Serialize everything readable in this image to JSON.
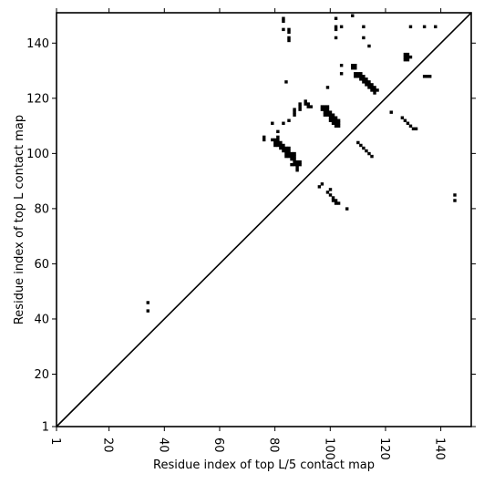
{
  "chart_data": {
    "type": "heatmap",
    "xlabel": "Residue index of top L/5 contact map",
    "ylabel": "Residue index of top L contact map",
    "xlim": [
      1,
      151
    ],
    "ylim": [
      1,
      151
    ],
    "x_ticks": [
      "1",
      "20",
      "40",
      "60",
      "80",
      "100",
      "120",
      "140"
    ],
    "x_tick_values": [
      1,
      20,
      40,
      60,
      80,
      100,
      120,
      140
    ],
    "y_ticks": [
      "1",
      "20",
      "40",
      "60",
      "80",
      "100",
      "120",
      "140"
    ],
    "y_tick_values": [
      1,
      20,
      40,
      60,
      80,
      100,
      120,
      140
    ],
    "diagonal": true,
    "cell_color": "#000000",
    "lower_triangle_contacts": [
      [
        34,
        43
      ],
      [
        34,
        46
      ]
    ],
    "upper_triangle_contacts": [
      [
        76,
        105
      ],
      [
        76,
        106
      ],
      [
        79,
        105
      ],
      [
        79,
        111
      ],
      [
        80,
        103
      ],
      [
        80,
        104
      ],
      [
        80,
        105
      ],
      [
        81,
        103
      ],
      [
        81,
        104
      ],
      [
        81,
        105
      ],
      [
        81,
        106
      ],
      [
        81,
        108
      ],
      [
        82,
        102
      ],
      [
        82,
        103
      ],
      [
        82,
        104
      ],
      [
        83,
        101
      ],
      [
        83,
        102
      ],
      [
        83,
        103
      ],
      [
        83,
        111
      ],
      [
        84,
        99
      ],
      [
        84,
        100
      ],
      [
        84,
        101
      ],
      [
        84,
        102
      ],
      [
        85,
        99
      ],
      [
        85,
        100
      ],
      [
        85,
        101
      ],
      [
        85,
        102
      ],
      [
        85,
        112
      ],
      [
        86,
        96
      ],
      [
        86,
        98
      ],
      [
        86,
        99
      ],
      [
        86,
        100
      ],
      [
        87,
        96
      ],
      [
        87,
        97
      ],
      [
        87,
        98
      ],
      [
        87,
        99
      ],
      [
        87,
        100
      ],
      [
        87,
        114
      ],
      [
        87,
        115
      ],
      [
        87,
        116
      ],
      [
        88,
        94
      ],
      [
        88,
        95
      ],
      [
        88,
        96
      ],
      [
        88,
        97
      ],
      [
        89,
        96
      ],
      [
        89,
        97
      ],
      [
        89,
        116
      ],
      [
        89,
        117
      ],
      [
        89,
        118
      ],
      [
        91,
        118
      ],
      [
        91,
        119
      ],
      [
        92,
        117
      ],
      [
        92,
        118
      ],
      [
        93,
        117
      ],
      [
        83,
        145
      ],
      [
        83,
        148
      ],
      [
        83,
        149
      ],
      [
        84,
        126
      ],
      [
        85,
        141
      ],
      [
        85,
        142
      ],
      [
        85,
        144
      ],
      [
        85,
        145
      ],
      [
        96,
        88
      ],
      [
        97,
        89
      ],
      [
        97,
        116
      ],
      [
        97,
        117
      ],
      [
        98,
        114
      ],
      [
        98,
        115
      ],
      [
        98,
        116
      ],
      [
        98,
        117
      ],
      [
        99,
        86
      ],
      [
        99,
        114
      ],
      [
        99,
        115
      ],
      [
        99,
        116
      ],
      [
        99,
        117
      ],
      [
        99,
        124
      ],
      [
        100,
        85
      ],
      [
        100,
        87
      ],
      [
        100,
        112
      ],
      [
        100,
        113
      ],
      [
        100,
        114
      ],
      [
        100,
        115
      ],
      [
        101,
        83
      ],
      [
        101,
        84
      ],
      [
        101,
        111
      ],
      [
        101,
        112
      ],
      [
        101,
        113
      ],
      [
        101,
        114
      ],
      [
        102,
        82
      ],
      [
        102,
        83
      ],
      [
        102,
        110
      ],
      [
        102,
        111
      ],
      [
        102,
        112
      ],
      [
        102,
        113
      ],
      [
        102,
        142
      ],
      [
        102,
        145
      ],
      [
        102,
        146
      ],
      [
        102,
        149
      ],
      [
        103,
        82
      ],
      [
        103,
        110
      ],
      [
        103,
        111
      ],
      [
        103,
        112
      ],
      [
        104,
        129
      ],
      [
        104,
        132
      ],
      [
        104,
        146
      ],
      [
        106,
        80
      ],
      [
        108,
        131
      ],
      [
        108,
        132
      ],
      [
        109,
        128
      ],
      [
        109,
        129
      ],
      [
        109,
        131
      ],
      [
        109,
        132
      ],
      [
        110,
        104
      ],
      [
        110,
        128
      ],
      [
        110,
        129
      ],
      [
        111,
        103
      ],
      [
        111,
        127
      ],
      [
        111,
        128
      ],
      [
        111,
        129
      ],
      [
        112,
        102
      ],
      [
        112,
        126
      ],
      [
        112,
        127
      ],
      [
        112,
        128
      ],
      [
        112,
        142
      ],
      [
        112,
        146
      ],
      [
        113,
        101
      ],
      [
        113,
        125
      ],
      [
        113,
        126
      ],
      [
        113,
        127
      ],
      [
        114,
        100
      ],
      [
        114,
        124
      ],
      [
        114,
        125
      ],
      [
        114,
        126
      ],
      [
        114,
        139
      ],
      [
        115,
        99
      ],
      [
        115,
        123
      ],
      [
        115,
        124
      ],
      [
        115,
        125
      ],
      [
        116,
        122
      ],
      [
        116,
        123
      ],
      [
        116,
        124
      ],
      [
        117,
        123
      ],
      [
        122,
        115
      ],
      [
        126,
        113
      ],
      [
        127,
        112
      ],
      [
        127,
        134
      ],
      [
        127,
        135
      ],
      [
        127,
        136
      ],
      [
        128,
        111
      ],
      [
        128,
        134
      ],
      [
        128,
        135
      ],
      [
        128,
        136
      ],
      [
        129,
        110
      ],
      [
        129,
        135
      ],
      [
        129,
        146
      ],
      [
        130,
        109
      ],
      [
        131,
        109
      ],
      [
        134,
        128
      ],
      [
        134,
        146
      ],
      [
        135,
        128
      ],
      [
        136,
        128
      ],
      [
        138,
        146
      ],
      [
        145,
        83
      ],
      [
        145,
        85
      ],
      [
        108,
        150
      ]
    ]
  }
}
